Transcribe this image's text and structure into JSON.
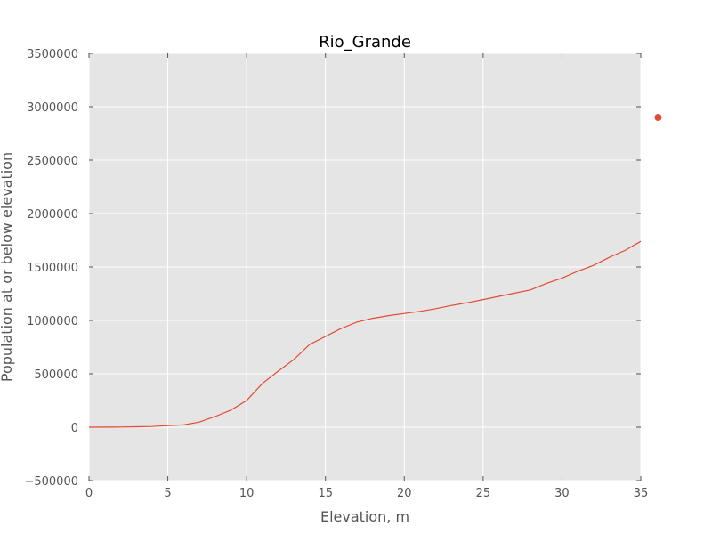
{
  "chart_data": {
    "type": "line",
    "title": "Rio_Grande",
    "xlabel": "Elevation, m",
    "ylabel": "Population at or below elevation",
    "xlim": [
      0,
      35
    ],
    "ylim": [
      -500000,
      3500000
    ],
    "xticks": [
      0,
      5,
      10,
      15,
      20,
      25,
      30,
      35
    ],
    "yticks": [
      -500000,
      0,
      500000,
      1000000,
      1500000,
      2000000,
      2500000,
      3000000,
      3500000
    ],
    "grid": true,
    "series": [
      {
        "color": "#e24a33",
        "x": [
          0,
          1,
          2,
          3,
          4,
          5,
          6,
          7,
          8,
          9,
          10,
          11,
          12,
          13,
          14,
          15,
          16,
          17,
          18,
          19,
          20,
          21,
          22,
          23,
          24,
          25,
          26,
          27,
          28,
          29,
          30,
          31,
          32,
          33,
          34,
          35
        ],
        "y": [
          0,
          1000,
          2000,
          4000,
          7000,
          15000,
          22000,
          48000,
          100000,
          160000,
          250000,
          410000,
          525000,
          635000,
          775000,
          850000,
          925000,
          985000,
          1020000,
          1045000,
          1065000,
          1085000,
          1110000,
          1140000,
          1165000,
          1195000,
          1225000,
          1255000,
          1285000,
          1345000,
          1395000,
          1460000,
          1515000,
          1590000,
          1655000,
          1740000
        ]
      }
    ],
    "points": [
      {
        "x": 36.1,
        "y": 2900000,
        "color": "#e24a33"
      }
    ]
  }
}
